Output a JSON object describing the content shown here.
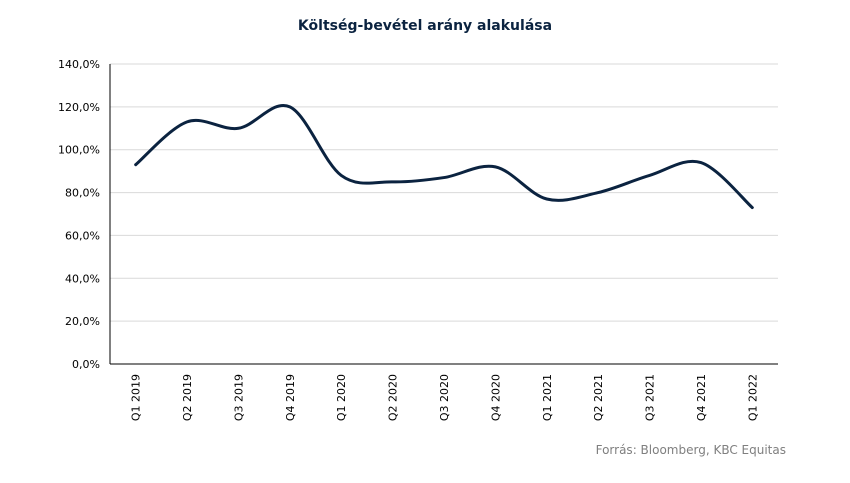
{
  "title": "Költség-bevétel arány alakulása",
  "source": "Forrás: Bloomberg, KBC Equitas",
  "chart_data": {
    "type": "line",
    "title": "Költség-bevétel arány alakulása",
    "categories": [
      "Q1 2019",
      "Q2 2019",
      "Q3 2019",
      "Q4 2019",
      "Q1 2020",
      "Q2 2020",
      "Q3 2020",
      "Q4 2020",
      "Q1 2021",
      "Q2 2021",
      "Q3 2021",
      "Q4 2021",
      "Q1 2022"
    ],
    "series": [
      {
        "values": [
          93,
          113,
          110,
          120,
          88,
          85,
          87,
          92,
          77,
          80,
          88,
          94,
          73
        ]
      }
    ],
    "ylim": [
      0,
      140
    ],
    "yticks": [
      0,
      20,
      40,
      60,
      80,
      100,
      120,
      140
    ],
    "ytick_labels": [
      "0,0%",
      "20,0%",
      "40,0%",
      "60,0%",
      "80,0%",
      "100,0%",
      "120,0%",
      "140,0%"
    ],
    "grid": true,
    "line_color": "#0b2340",
    "grid_color": "#d9d9d9"
  }
}
